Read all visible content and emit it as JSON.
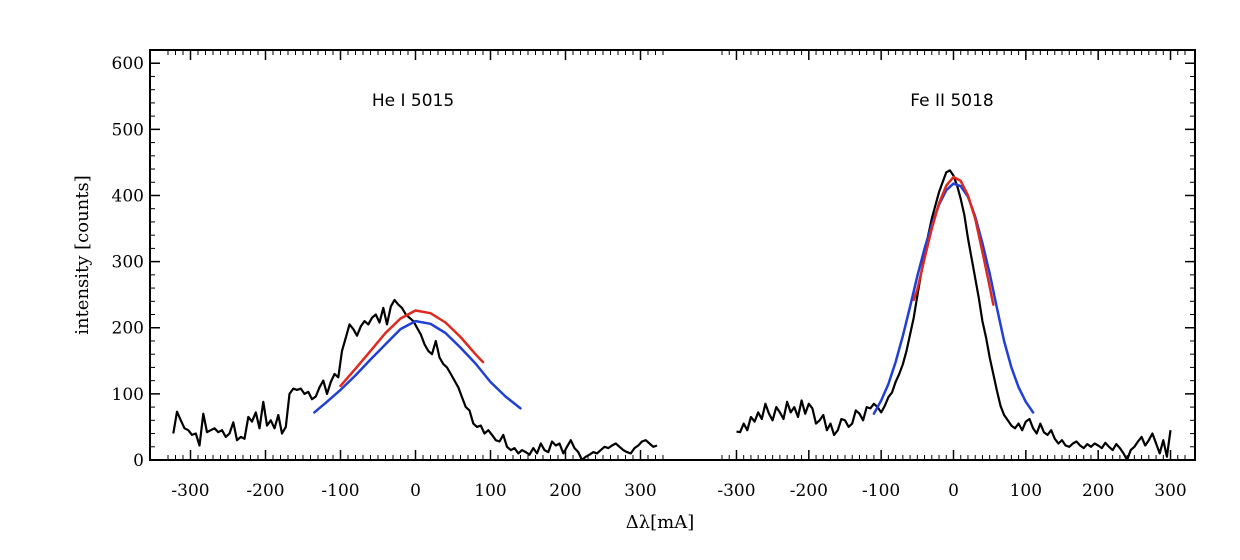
{
  "chart_data": {
    "type": "line",
    "xlabel": "Δλ[mA]",
    "ylabel": "intensity [counts]",
    "ylim": [
      0,
      620
    ],
    "yticks": [
      0,
      100,
      200,
      300,
      400,
      500,
      600
    ],
    "grid": false,
    "colors": {
      "data": "#000000",
      "fit_blue": "#1f3fd6",
      "fit_red": "#e0281e"
    },
    "panels": [
      {
        "name": "He I 5015",
        "xlim": [
          -330,
          330
        ],
        "xticks": [
          -300,
          -200,
          -100,
          0,
          100,
          200,
          300
        ],
        "x": [
          -323,
          -318,
          -313,
          -308,
          -303,
          -298,
          -293,
          -288,
          -283,
          -278,
          -273,
          -268,
          -263,
          -258,
          -253,
          -248,
          -243,
          -238,
          -233,
          -228,
          -223,
          -218,
          -213,
          -208,
          -203,
          -198,
          -193,
          -188,
          -183,
          -178,
          -173,
          -168,
          -163,
          -158,
          -153,
          -148,
          -143,
          -138,
          -133,
          -128,
          -123,
          -118,
          -113,
          -108,
          -103,
          -98,
          -93,
          -88,
          -83,
          -78,
          -73,
          -68,
          -63,
          -58,
          -53,
          -48,
          -43,
          -38,
          -33,
          -28,
          -23,
          -18,
          -13,
          -8,
          -3,
          2,
          7,
          12,
          17,
          22,
          27,
          32,
          37,
          42,
          47,
          52,
          57,
          62,
          67,
          72,
          77,
          82,
          87,
          92,
          97,
          102,
          107,
          112,
          117,
          122,
          127,
          132,
          137,
          142,
          147,
          152,
          157,
          162,
          167,
          172,
          177,
          182,
          187,
          192,
          197,
          202,
          207,
          212,
          217,
          222,
          227,
          232,
          237,
          242,
          247,
          252,
          257,
          262,
          267,
          272,
          277,
          282,
          287,
          292,
          297,
          302,
          307,
          312,
          317,
          322
        ],
        "values": [
          40,
          73,
          60,
          48,
          45,
          38,
          40,
          22,
          70,
          42,
          45,
          48,
          42,
          45,
          35,
          40,
          57,
          30,
          35,
          32,
          65,
          58,
          72,
          48,
          88,
          52,
          60,
          48,
          68,
          40,
          50,
          100,
          108,
          106,
          108,
          100,
          103,
          92,
          96,
          110,
          120,
          100,
          118,
          130,
          125,
          165,
          185,
          205,
          198,
          188,
          202,
          210,
          205,
          215,
          220,
          208,
          230,
          205,
          232,
          242,
          235,
          230,
          220,
          215,
          210,
          200,
          190,
          175,
          165,
          160,
          180,
          155,
          145,
          140,
          130,
          120,
          110,
          95,
          80,
          75,
          55,
          50,
          52,
          40,
          45,
          38,
          30,
          28,
          38,
          20,
          15,
          18,
          10,
          15,
          12,
          8,
          18,
          10,
          25,
          15,
          12,
          28,
          22,
          25,
          10,
          20,
          30,
          18,
          12,
          0,
          5,
          8,
          12,
          10,
          15,
          20,
          18,
          22,
          25,
          20,
          15,
          12,
          10,
          18,
          22,
          28,
          30,
          25,
          20,
          22
        ]
      },
      {
        "name": "Fe II 5018",
        "xlim": [
          -320,
          320
        ],
        "xticks": [
          -300,
          -200,
          -100,
          0,
          100,
          200,
          300
        ],
        "x": [
          -300,
          -295,
          -290,
          -285,
          -280,
          -275,
          -270,
          -265,
          -260,
          -255,
          -250,
          -245,
          -240,
          -235,
          -230,
          -225,
          -220,
          -215,
          -210,
          -205,
          -200,
          -195,
          -190,
          -185,
          -180,
          -175,
          -170,
          -165,
          -160,
          -155,
          -150,
          -145,
          -140,
          -135,
          -130,
          -125,
          -120,
          -115,
          -110,
          -105,
          -100,
          -95,
          -90,
          -85,
          -80,
          -75,
          -70,
          -65,
          -60,
          -55,
          -50,
          -45,
          -40,
          -35,
          -30,
          -25,
          -20,
          -15,
          -10,
          -5,
          0,
          5,
          10,
          15,
          20,
          25,
          30,
          35,
          40,
          45,
          50,
          55,
          60,
          65,
          70,
          75,
          80,
          85,
          90,
          95,
          100,
          105,
          110,
          115,
          120,
          125,
          130,
          135,
          140,
          145,
          150,
          155,
          160,
          165,
          170,
          175,
          180,
          185,
          190,
          195,
          200,
          205,
          210,
          215,
          220,
          225,
          230,
          235,
          240,
          245,
          250,
          255,
          260,
          265,
          270,
          275,
          280,
          285,
          290,
          295,
          300
        ],
        "values": [
          43,
          42,
          55,
          45,
          65,
          58,
          72,
          62,
          85,
          70,
          60,
          80,
          72,
          62,
          88,
          72,
          80,
          65,
          90,
          70,
          85,
          78,
          55,
          60,
          68,
          45,
          55,
          38,
          45,
          62,
          60,
          50,
          55,
          75,
          70,
          60,
          80,
          78,
          85,
          80,
          72,
          82,
          95,
          102,
          118,
          130,
          145,
          165,
          190,
          215,
          248,
          280,
          310,
          340,
          365,
          385,
          405,
          420,
          435,
          438,
          430,
          415,
          395,
          370,
          335,
          305,
          275,
          245,
          210,
          185,
          155,
          130,
          105,
          82,
          68,
          60,
          52,
          48,
          55,
          45,
          58,
          62,
          48,
          40,
          55,
          42,
          38,
          45,
          32,
          25,
          30,
          22,
          20,
          25,
          28,
          22,
          18,
          24,
          20,
          25,
          22,
          18,
          26,
          20,
          15,
          24,
          18,
          10,
          0,
          15,
          20,
          28,
          35,
          22,
          30,
          40,
          25,
          10,
          30,
          5,
          45
        ],
        "fit_blue": {
          "x": [
            -110,
            -100,
            -90,
            -80,
            -70,
            -60,
            -50,
            -40,
            -30,
            -20,
            -10,
            0,
            10,
            20,
            30,
            40,
            50,
            60,
            70,
            80,
            90,
            100,
            110
          ],
          "values": [
            70,
            90,
            115,
            148,
            188,
            232,
            278,
            320,
            356,
            386,
            408,
            418,
            414,
            398,
            368,
            328,
            282,
            230,
            180,
            140,
            110,
            88,
            72
          ]
        },
        "fit_red": {
          "x": [
            -55,
            -50,
            -40,
            -30,
            -20,
            -10,
            0,
            10,
            20,
            30,
            40,
            50,
            55
          ],
          "values": [
            242,
            258,
            305,
            350,
            388,
            415,
            428,
            422,
            400,
            365,
            315,
            262,
            235
          ]
        }
      }
    ],
    "he_fit_blue": {
      "x": [
        -135,
        -120,
        -100,
        -80,
        -60,
        -40,
        -20,
        0,
        20,
        40,
        60,
        80,
        100,
        120,
        140
      ],
      "values": [
        72,
        86,
        106,
        128,
        152,
        175,
        198,
        210,
        206,
        192,
        170,
        146,
        118,
        96,
        78
      ]
    },
    "he_fit_red": {
      "x": [
        -100,
        -80,
        -60,
        -40,
        -20,
        0,
        20,
        40,
        60,
        80,
        90
      ],
      "values": [
        112,
        138,
        165,
        192,
        214,
        226,
        222,
        208,
        186,
        160,
        148
      ]
    }
  }
}
